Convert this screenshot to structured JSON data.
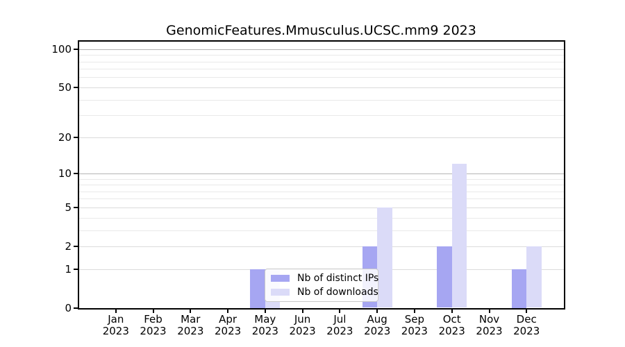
{
  "title": "GenomicFeatures.Mmusculus.UCSC.mm9 2023",
  "chart_data": {
    "type": "bar",
    "title": "GenomicFeatures.Mmusculus.UCSC.mm9 2023",
    "categories": [
      "Jan 2023",
      "Feb 2023",
      "Mar 2023",
      "Apr 2023",
      "May 2023",
      "Jun 2023",
      "Jul 2023",
      "Aug 2023",
      "Sep 2023",
      "Oct 2023",
      "Nov 2023",
      "Dec 2023"
    ],
    "series": [
      {
        "name": "Nb of distinct IPs",
        "color": "#a6a6f2",
        "values": [
          0,
          0,
          0,
          0,
          1,
          0,
          0,
          2,
          0,
          2,
          0,
          1
        ]
      },
      {
        "name": "Nb of downloads",
        "color": "#dbdbf8",
        "values": [
          0,
          0,
          0,
          0,
          1,
          0,
          0,
          5,
          0,
          12,
          0,
          2
        ]
      }
    ],
    "xlabel": "",
    "ylabel": "",
    "yscale": "log1p",
    "ylim": [
      0,
      116
    ],
    "yticks": [
      0,
      1,
      2,
      5,
      10,
      20,
      50,
      100
    ],
    "yticks_minor": [
      3,
      4,
      6,
      7,
      8,
      9,
      30,
      40,
      60,
      70,
      80,
      90
    ],
    "grid": true,
    "legend_position": "inside-bottom-center"
  },
  "colors": {
    "bar_distinct_ips": "#a6a6f2",
    "bar_downloads": "#dbdbf8",
    "grid_decade": "#b3b3b3",
    "grid_major": "#dbdbdb",
    "grid_minor": "#e9e9e9",
    "axis": "#000000",
    "text": "#000000",
    "legend_border": "#c9c9c9",
    "legend_bg": "#ffffff"
  }
}
